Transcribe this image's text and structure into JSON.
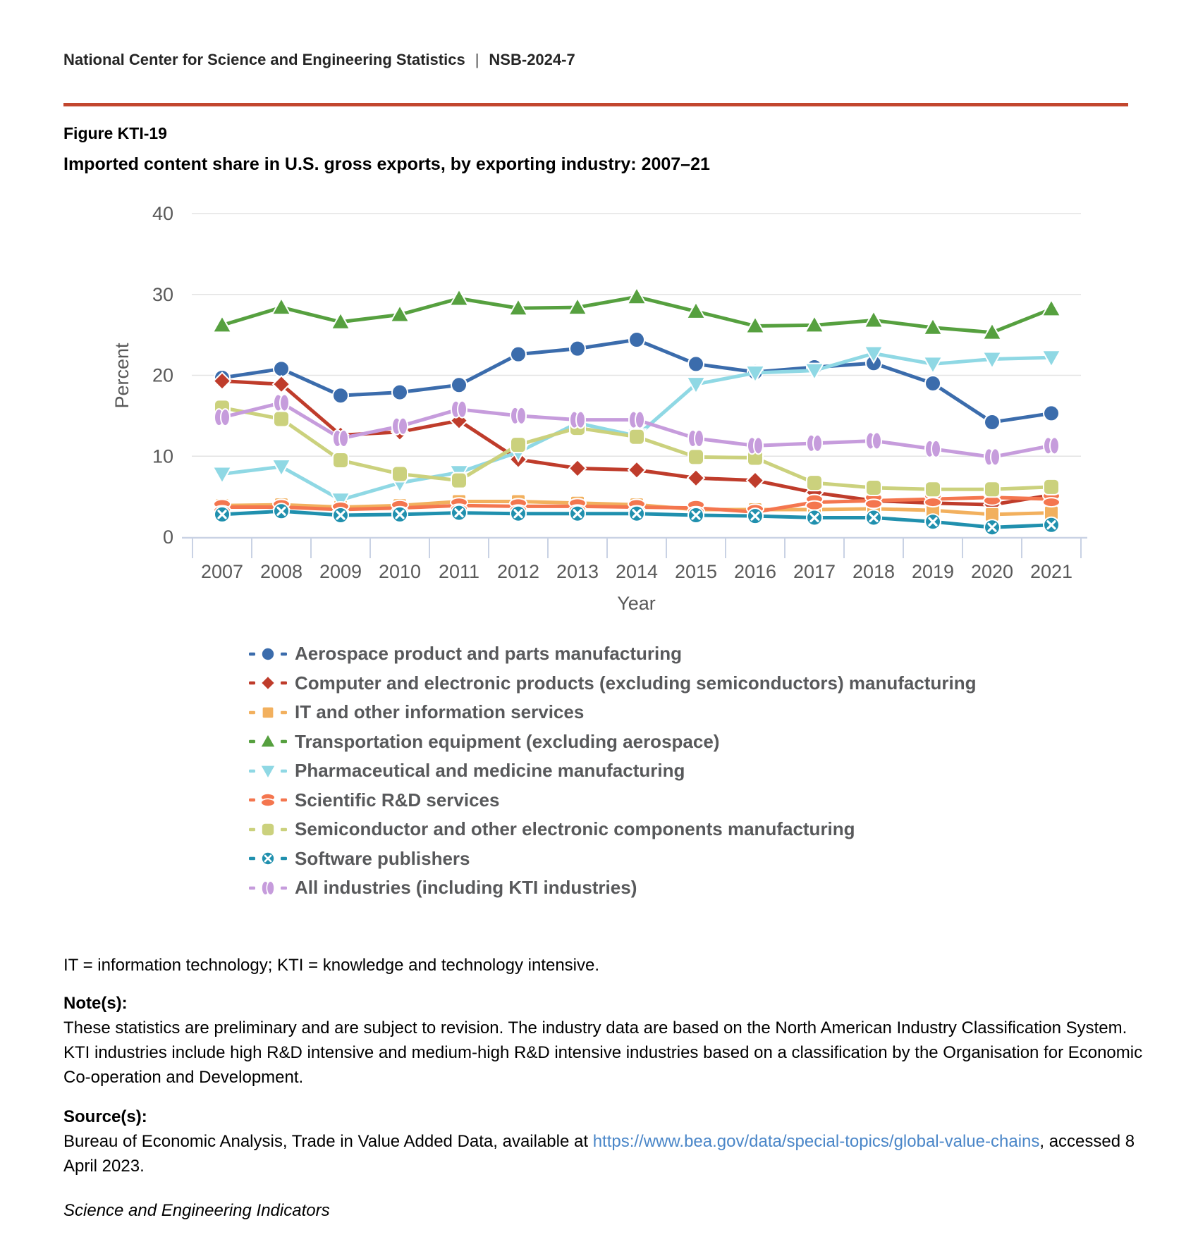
{
  "header": {
    "org": "National Center for Science and Engineering Statistics",
    "separator": "|",
    "report_id": "NSB-2024-7",
    "rule_color": "#c2462e"
  },
  "figure": {
    "label": "Figure KTI-19",
    "title": "Imported content share in U.S. gross exports, by exporting industry: 2007–21"
  },
  "chart_data": {
    "type": "line",
    "title": "Imported content share in U.S. gross exports, by exporting industry: 2007–21",
    "xlabel": "Year",
    "ylabel": "Percent",
    "ylim": [
      0,
      40
    ],
    "yticks": [
      0,
      10,
      20,
      30,
      40
    ],
    "grid": "horizontal",
    "legend_position": "bottom-left",
    "x": [
      2007,
      2008,
      2009,
      2010,
      2011,
      2012,
      2013,
      2014,
      2015,
      2016,
      2017,
      2018,
      2019,
      2020,
      2021
    ],
    "series": [
      {
        "id": "aerospace",
        "name": "Aerospace product and parts manufacturing",
        "marker": "circle",
        "color": "#3b6cac",
        "values": [
          19.7,
          20.8,
          17.5,
          17.9,
          18.8,
          22.6,
          23.3,
          24.4,
          21.4,
          20.4,
          21.0,
          21.5,
          19.0,
          14.2,
          15.3
        ]
      },
      {
        "id": "computer-electronics",
        "name": "Computer and electronic products (excluding semiconductors) manufacturing",
        "marker": "diamond",
        "color": "#bf3c2b",
        "values": [
          19.3,
          18.9,
          12.6,
          13.0,
          14.4,
          9.6,
          8.5,
          8.3,
          7.3,
          7.0,
          5.5,
          4.5,
          4.2,
          4.0,
          5.2
        ]
      },
      {
        "id": "it-information-services",
        "name": "IT and other information services",
        "marker": "square",
        "color": "#f2b05e",
        "values": [
          3.9,
          4.0,
          3.7,
          3.9,
          4.4,
          4.4,
          4.2,
          4.0,
          3.4,
          3.4,
          3.4,
          3.5,
          3.3,
          2.8,
          3.0
        ]
      },
      {
        "id": "transportation-equipment",
        "name": "Transportation equipment (excluding aerospace)",
        "marker": "triangle-up",
        "color": "#56a03f",
        "values": [
          26.2,
          28.4,
          26.6,
          27.5,
          29.5,
          28.3,
          28.4,
          29.7,
          27.9,
          26.1,
          26.2,
          26.8,
          25.9,
          25.3,
          28.2
        ]
      },
      {
        "id": "pharmaceutical",
        "name": "Pharmaceutical and medicine manufacturing",
        "marker": "triangle-down",
        "color": "#8fd8e4",
        "values": [
          7.8,
          8.7,
          4.6,
          6.7,
          8.0,
          10.5,
          14.1,
          12.5,
          18.9,
          20.3,
          20.6,
          22.7,
          21.4,
          22.0,
          22.2
        ]
      },
      {
        "id": "scientific-rnd",
        "name": "Scientific R&D services",
        "marker": "peanut-h",
        "color": "#f4764f",
        "values": [
          3.7,
          3.7,
          3.4,
          3.6,
          3.9,
          3.8,
          3.8,
          3.7,
          3.6,
          3.1,
          4.3,
          4.5,
          4.7,
          4.9,
          4.7
        ]
      },
      {
        "id": "semiconductor",
        "name": "Semiconductor and other electronic components manufacturing",
        "marker": "rounded-square",
        "color": "#cbd17d",
        "values": [
          16.0,
          14.6,
          9.5,
          7.8,
          7.0,
          11.4,
          13.5,
          12.4,
          9.9,
          9.8,
          6.7,
          6.1,
          5.9,
          5.9,
          6.2
        ]
      },
      {
        "id": "software-publishers",
        "name": "Software publishers",
        "marker": "circle-x",
        "color": "#2090ae",
        "values": [
          2.8,
          3.2,
          2.7,
          2.8,
          3.0,
          2.9,
          2.9,
          2.9,
          2.7,
          2.6,
          2.4,
          2.4,
          1.9,
          1.2,
          1.5
        ]
      },
      {
        "id": "all-industries",
        "name": "All industries (including KTI industries)",
        "marker": "peanut-v",
        "color": "#c69cdc",
        "values": [
          14.8,
          16.6,
          12.2,
          13.7,
          15.8,
          15.0,
          14.5,
          14.5,
          12.2,
          11.3,
          11.6,
          11.9,
          10.9,
          9.9,
          11.3
        ]
      }
    ]
  },
  "footnotes": {
    "abbreviations": "IT = information technology; KTI = knowledge and technology intensive.",
    "notes_heading": "Note(s):",
    "notes": "These statistics are preliminary and are subject to revision. The industry data are based on the North American Industry Classification System. KTI industries include high R&D intensive and medium-high R&D intensive industries based on a classification by the Organisation for Economic Co-operation and Development.",
    "sources_heading": "Source(s):",
    "source_prefix": "Bureau of Economic Analysis, Trade in Value Added Data, available at ",
    "source_link": "https://www.bea.gov/data/special-topics/global-value-chains",
    "source_suffix": ", accessed 8\nApril 2023.",
    "publication": "Science and Engineering Indicators"
  },
  "colors": {
    "accent_rule": "#c2462e",
    "axis_text": "#595959",
    "gridline": "#e3e3e3",
    "axis_line": "#c9d2e4",
    "legend_text": "#58595b",
    "link": "#4a86c8"
  }
}
